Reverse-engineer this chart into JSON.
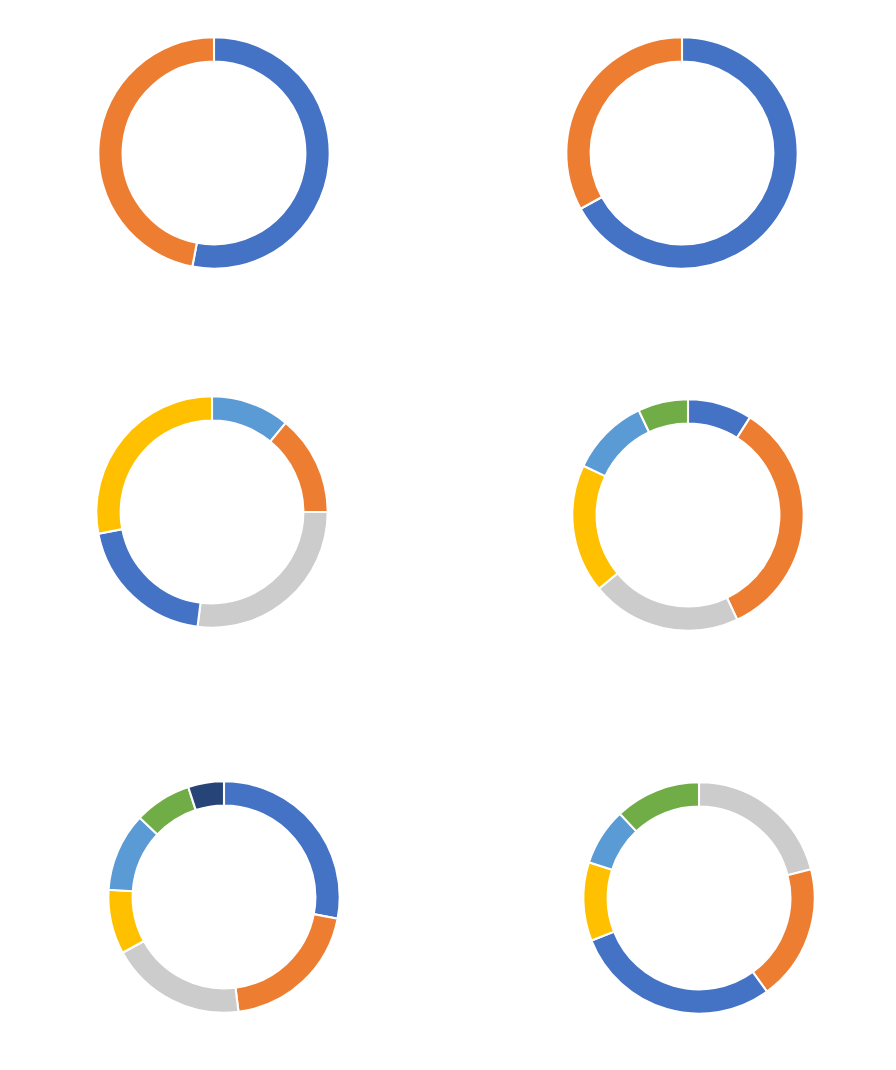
{
  "chart_data": [
    {
      "type": "donut",
      "categories": [
        null,
        null
      ],
      "values": [
        53,
        47
      ],
      "colors": [
        "#4472c4",
        "#ed7d31"
      ]
    },
    {
      "type": "donut",
      "categories": [
        null,
        null
      ],
      "values": [
        67,
        33
      ],
      "colors": [
        "#4472c4",
        "#ed7d31"
      ]
    },
    {
      "type": "donut",
      "categories": [
        null,
        null,
        null,
        null,
        null
      ],
      "values": [
        11,
        14,
        27,
        20,
        28
      ],
      "colors": [
        "#5b9bd5",
        "#ed7d31",
        "#cccccc",
        "#4472c4",
        "#ffc000"
      ]
    },
    {
      "type": "donut",
      "categories": [
        null,
        null,
        null,
        null,
        null,
        null
      ],
      "values": [
        9,
        34,
        21,
        18,
        11,
        7
      ],
      "colors": [
        "#4472c4",
        "#ed7d31",
        "#cccccc",
        "#ffc000",
        "#5b9bd5",
        "#70ad47"
      ]
    },
    {
      "type": "donut",
      "categories": [
        null,
        null,
        null,
        null,
        null,
        null,
        null
      ],
      "values": [
        28,
        20,
        19,
        9,
        11,
        8,
        5
      ],
      "colors": [
        "#4472c4",
        "#ed7d31",
        "#cccccc",
        "#ffc000",
        "#5b9bd5",
        "#70ad47",
        "#264478"
      ]
    },
    {
      "type": "donut",
      "categories": [
        null,
        null,
        null,
        null,
        null,
        null
      ],
      "values": [
        21,
        19,
        29,
        11,
        8,
        12
      ],
      "colors": [
        "#cccccc",
        "#ed7d31",
        "#4472c4",
        "#ffc000",
        "#5b9bd5",
        "#70ad47"
      ]
    }
  ]
}
